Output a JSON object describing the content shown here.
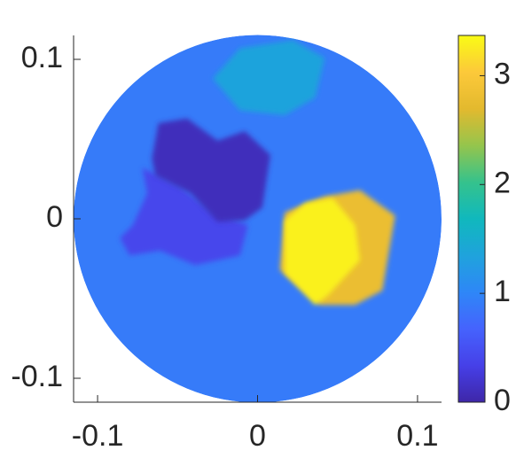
{
  "chart_data": {
    "type": "heatmap",
    "colormap": "parula",
    "xlim": [
      -0.115,
      0.115
    ],
    "ylim": [
      -0.115,
      0.115
    ],
    "xticks": [
      -0.1,
      0,
      0.1
    ],
    "yticks": [
      -0.1,
      0,
      0.1
    ],
    "clim": [
      0,
      3.37
    ],
    "cticks": [
      0,
      1,
      2,
      3
    ],
    "regions": [
      {
        "value": 0.9,
        "center": [
          0,
          0
        ],
        "radius": 0.115
      },
      {
        "value": 1.35,
        "polygon": [
          [
            -0.028,
            0.088
          ],
          [
            -0.011,
            0.107
          ],
          [
            0.022,
            0.112
          ],
          [
            0.042,
            0.101
          ],
          [
            0.036,
            0.076
          ],
          [
            0.017,
            0.065
          ],
          [
            -0.011,
            0.068
          ]
        ]
      },
      {
        "value": 0.4,
        "polygon": [
          [
            -0.086,
            -0.012
          ],
          [
            -0.078,
            -0.004
          ],
          [
            -0.069,
            0.016
          ],
          [
            -0.072,
            0.032
          ],
          [
            -0.05,
            0.021
          ],
          [
            -0.028,
            0.004
          ],
          [
            -0.006,
            -0.004
          ],
          [
            -0.011,
            -0.023
          ],
          [
            -0.039,
            -0.029
          ],
          [
            -0.061,
            -0.02
          ],
          [
            -0.08,
            -0.023
          ]
        ]
      },
      {
        "value": 0.1,
        "polygon": [
          [
            -0.066,
            0.038
          ],
          [
            -0.062,
            0.06
          ],
          [
            -0.044,
            0.063
          ],
          [
            -0.025,
            0.049
          ],
          [
            -0.008,
            0.055
          ],
          [
            0.008,
            0.04
          ],
          [
            0.003,
            0.007
          ],
          [
            -0.008,
            -0.001
          ],
          [
            -0.025,
            -0.002
          ],
          [
            -0.042,
            0.016
          ],
          [
            -0.064,
            0.027
          ]
        ]
      },
      {
        "value": 2.8,
        "polygon": [
          [
            0.017,
            0.004
          ],
          [
            0.042,
            0.014
          ],
          [
            0.064,
            0.018
          ],
          [
            0.086,
            0.002
          ],
          [
            0.078,
            -0.045
          ],
          [
            0.061,
            -0.054
          ],
          [
            0.039,
            -0.054
          ],
          [
            0.014,
            -0.032
          ]
        ]
      },
      {
        "value": 3.3,
        "polygon": [
          [
            0.017,
            -0.001
          ],
          [
            0.03,
            0.01
          ],
          [
            0.047,
            0.013
          ],
          [
            0.061,
            -0.004
          ],
          [
            0.064,
            -0.026
          ],
          [
            0.044,
            -0.048
          ],
          [
            0.036,
            -0.054
          ],
          [
            0.017,
            -0.034
          ]
        ]
      }
    ]
  }
}
